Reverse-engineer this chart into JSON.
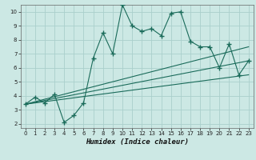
{
  "xlabel": "Humidex (Indice chaleur)",
  "bg_color": "#cce8e4",
  "grid_color": "#aacfcc",
  "line_color": "#1a6b5a",
  "xlim": [
    -0.5,
    23.5
  ],
  "ylim": [
    1.7,
    10.5
  ],
  "xticks": [
    0,
    1,
    2,
    3,
    4,
    5,
    6,
    7,
    8,
    9,
    10,
    11,
    12,
    13,
    14,
    15,
    16,
    17,
    18,
    19,
    20,
    21,
    22,
    23
  ],
  "yticks": [
    2,
    3,
    4,
    5,
    6,
    7,
    8,
    9,
    10
  ],
  "series1_x": [
    0,
    1,
    2,
    3,
    4,
    5,
    6,
    7,
    8,
    9,
    10,
    11,
    12,
    13,
    14,
    15,
    16,
    17,
    18,
    19,
    20,
    21,
    22,
    23
  ],
  "series1_y": [
    3.4,
    3.9,
    3.5,
    4.1,
    2.1,
    2.6,
    3.5,
    6.7,
    8.5,
    7.0,
    10.5,
    9.0,
    8.6,
    8.8,
    8.3,
    9.9,
    10.0,
    7.9,
    7.5,
    7.5,
    6.0,
    7.7,
    5.5,
    6.5
  ],
  "series2_x": [
    0,
    23
  ],
  "series2_y": [
    3.4,
    7.5
  ],
  "series3_x": [
    0,
    23
  ],
  "series3_y": [
    3.4,
    6.5
  ],
  "series4_x": [
    0,
    23
  ],
  "series4_y": [
    3.4,
    5.5
  ]
}
